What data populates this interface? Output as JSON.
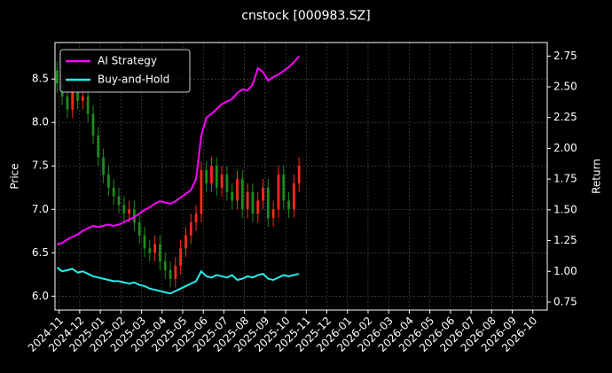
{
  "chart_data": {
    "type": "candlestick",
    "title": "cnstock [000983.SZ]",
    "y_label": "Price",
    "y2_label": "Return",
    "x": [
      -0.1,
      0.15,
      0.4,
      0.65,
      0.9,
      1.15,
      1.4,
      1.65,
      1.9,
      2.15,
      2.4,
      2.65,
      2.9,
      3.15,
      3.4,
      3.65,
      3.9,
      4.15,
      4.4,
      4.65,
      4.9,
      5.15,
      5.4,
      5.65,
      5.9,
      6.15,
      6.4,
      6.65,
      6.9,
      7.15,
      7.4,
      7.65,
      7.9,
      8.15,
      8.4,
      8.65,
      8.9,
      9.15,
      9.4,
      9.65,
      9.9,
      10.15,
      10.4,
      10.65,
      10.9,
      11.15,
      11.4,
      11.65
    ],
    "open": [
      8.6,
      8.45,
      8.3,
      8.15,
      8.35,
      8.25,
      8.3,
      8.1,
      7.85,
      7.6,
      7.4,
      7.25,
      7.15,
      7.05,
      6.95,
      7.0,
      6.85,
      6.7,
      6.55,
      6.5,
      6.6,
      6.4,
      6.3,
      6.2,
      6.35,
      6.55,
      6.7,
      6.85,
      6.95,
      7.45,
      7.3,
      7.5,
      7.25,
      7.4,
      7.2,
      7.1,
      7.35,
      7.0,
      7.2,
      6.95,
      7.1,
      7.25,
      6.9,
      7.0,
      7.4,
      7.1,
      7.0,
      7.3
    ],
    "high": [
      8.7,
      8.55,
      8.4,
      8.45,
      8.45,
      8.4,
      8.4,
      8.2,
      7.95,
      7.7,
      7.5,
      7.35,
      7.25,
      7.15,
      7.1,
      7.1,
      6.95,
      6.8,
      6.65,
      6.7,
      6.7,
      6.5,
      6.4,
      6.45,
      6.65,
      6.8,
      6.95,
      7.05,
      7.55,
      7.55,
      7.6,
      7.6,
      7.5,
      7.5,
      7.3,
      7.45,
      7.45,
      7.3,
      7.3,
      7.2,
      7.35,
      7.35,
      7.1,
      7.5,
      7.5,
      7.2,
      7.4,
      7.6
    ],
    "low": [
      8.35,
      8.2,
      8.05,
      8.05,
      8.15,
      8.15,
      8.0,
      7.75,
      7.5,
      7.3,
      7.15,
      7.05,
      6.95,
      6.85,
      6.85,
      6.75,
      6.6,
      6.45,
      6.4,
      6.4,
      6.3,
      6.2,
      6.1,
      6.1,
      6.25,
      6.45,
      6.6,
      6.75,
      6.85,
      7.2,
      7.2,
      7.15,
      7.15,
      7.1,
      7.0,
      7.0,
      6.9,
      6.9,
      6.85,
      6.85,
      7.0,
      6.8,
      6.8,
      6.9,
      7.0,
      6.9,
      6.9,
      7.2
    ],
    "close": [
      8.45,
      8.3,
      8.15,
      8.35,
      8.25,
      8.3,
      8.1,
      7.85,
      7.6,
      7.4,
      7.25,
      7.15,
      7.05,
      6.95,
      7.0,
      6.85,
      6.7,
      6.55,
      6.5,
      6.6,
      6.4,
      6.3,
      6.2,
      6.35,
      6.55,
      6.7,
      6.85,
      6.95,
      7.45,
      7.3,
      7.5,
      7.25,
      7.4,
      7.2,
      7.1,
      7.35,
      7.0,
      7.2,
      6.95,
      7.1,
      7.25,
      6.9,
      7.0,
      7.4,
      7.1,
      7.0,
      7.3,
      7.5
    ],
    "up_color": "#ff2a1a",
    "down_color": "#1e8c1e",
    "series": [
      {
        "name": "AI Strategy",
        "color": "#ff00ff",
        "axis": "y2",
        "values": [
          1.22,
          1.23,
          1.26,
          1.28,
          1.3,
          1.33,
          1.35,
          1.37,
          1.36,
          1.37,
          1.38,
          1.37,
          1.38,
          1.4,
          1.42,
          1.44,
          1.47,
          1.5,
          1.52,
          1.55,
          1.57,
          1.56,
          1.55,
          1.57,
          1.6,
          1.63,
          1.66,
          1.75,
          2.1,
          2.25,
          2.28,
          2.32,
          2.36,
          2.38,
          2.4,
          2.45,
          2.48,
          2.47,
          2.52,
          2.65,
          2.62,
          2.55,
          2.58,
          2.6,
          2.63,
          2.66,
          2.7,
          2.75
        ]
      },
      {
        "name": "Buy-and-Hold",
        "color": "#22eeee",
        "axis": "y2",
        "values": [
          1.03,
          1.0,
          1.01,
          1.02,
          0.99,
          1.0,
          0.98,
          0.96,
          0.95,
          0.94,
          0.93,
          0.92,
          0.92,
          0.91,
          0.9,
          0.91,
          0.89,
          0.88,
          0.86,
          0.85,
          0.84,
          0.83,
          0.82,
          0.84,
          0.86,
          0.88,
          0.9,
          0.92,
          1.0,
          0.96,
          0.95,
          0.97,
          0.96,
          0.95,
          0.97,
          0.93,
          0.94,
          0.96,
          0.95,
          0.97,
          0.98,
          0.94,
          0.93,
          0.95,
          0.97,
          0.96,
          0.97,
          0.98
        ]
      }
    ],
    "xlim": [
      -0.2,
      23.7
    ],
    "xticks": [
      {
        "value": 0,
        "label": "2024-11"
      },
      {
        "value": 1,
        "label": "2024-12"
      },
      {
        "value": 2,
        "label": "2025-01"
      },
      {
        "value": 3,
        "label": "2025-02"
      },
      {
        "value": 4,
        "label": "2025-03"
      },
      {
        "value": 5,
        "label": "2025-04"
      },
      {
        "value": 6,
        "label": "2025-05"
      },
      {
        "value": 7,
        "label": "2025-06"
      },
      {
        "value": 8,
        "label": "2025-07"
      },
      {
        "value": 9,
        "label": "2025-08"
      },
      {
        "value": 10,
        "label": "2025-09"
      },
      {
        "value": 11,
        "label": "2025-10"
      },
      {
        "value": 12,
        "label": "2025-11"
      },
      {
        "value": 13,
        "label": "2025-12"
      },
      {
        "value": 14,
        "label": "2026-01"
      },
      {
        "value": 15,
        "label": "2026-02"
      },
      {
        "value": 16,
        "label": "2026-03"
      },
      {
        "value": 17,
        "label": "2026-04"
      },
      {
        "value": 18,
        "label": "2026-05"
      },
      {
        "value": 19,
        "label": "2026-06"
      },
      {
        "value": 20,
        "label": "2026-07"
      },
      {
        "value": 21,
        "label": "2026-08"
      },
      {
        "value": 22,
        "label": "2026-09"
      },
      {
        "value": 23,
        "label": "2026-10"
      }
    ],
    "ylim": [
      5.84,
      8.92
    ],
    "yticks": [
      {
        "value": 6,
        "label": "6.0"
      },
      6.5,
      {
        "value": 7,
        "label": "7.0"
      },
      7.5,
      {
        "value": 8,
        "label": "8.0"
      },
      8.5
    ],
    "y2lim": [
      0.685,
      2.86
    ],
    "y2ticks": [
      0.75,
      {
        "value": 1,
        "label": "1.00"
      },
      1.25,
      {
        "value": 1.5,
        "label": "1.50"
      },
      1.75,
      {
        "value": 2,
        "label": "2.00"
      },
      2.25,
      {
        "value": 2.5,
        "label": "2.50"
      },
      2.75
    ],
    "grid": true,
    "legend": "upper-left"
  }
}
